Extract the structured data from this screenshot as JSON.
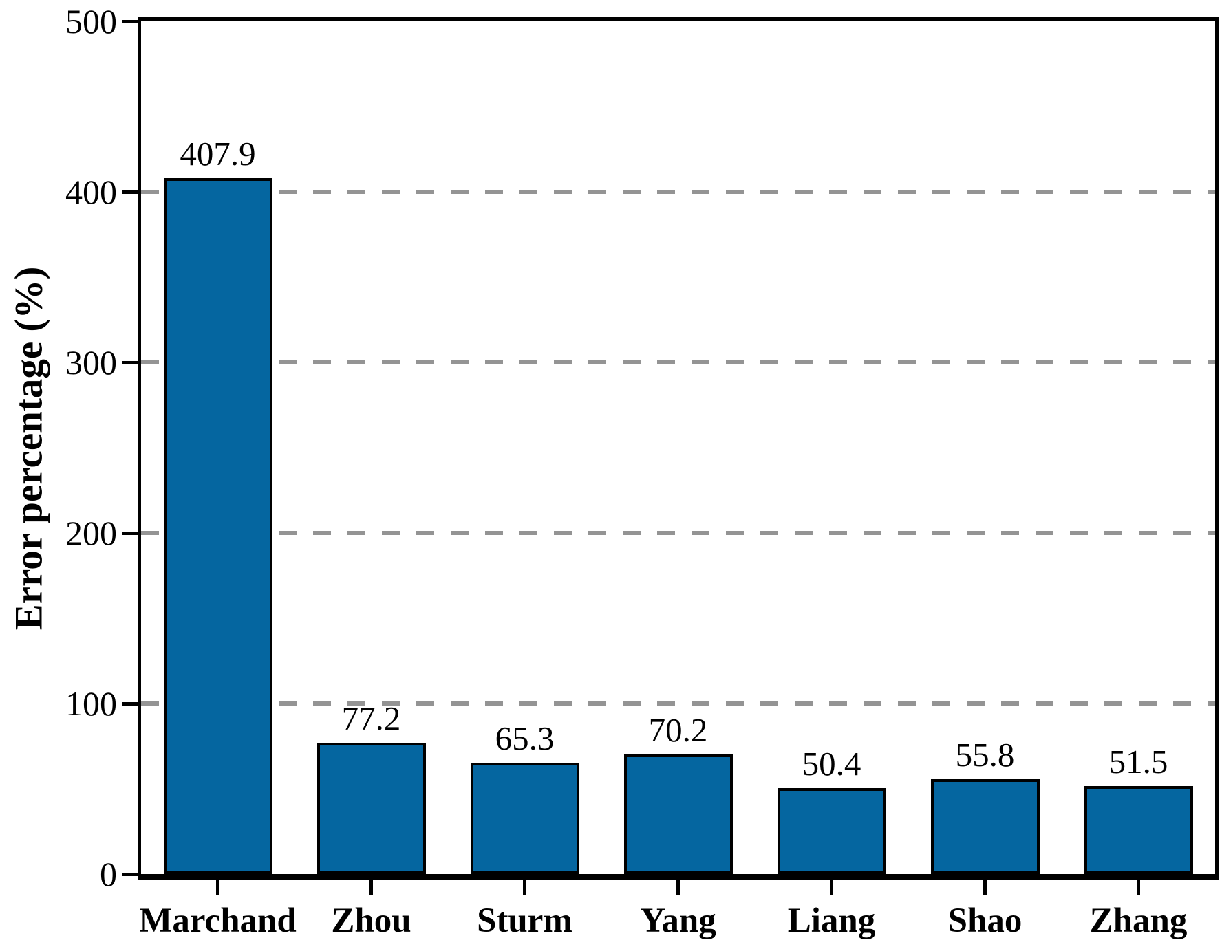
{
  "chart_data": {
    "type": "bar",
    "title": "",
    "xlabel": "",
    "ylabel": "Error percentage (%)",
    "categories": [
      "Marchand",
      "Zhou",
      "Sturm",
      "Yang",
      "Liang",
      "Shao",
      "Zhang"
    ],
    "values": [
      407.9,
      77.2,
      65.3,
      70.2,
      50.4,
      55.8,
      51.5
    ],
    "value_labels": [
      "407.9",
      "77.2",
      "65.3",
      "70.2",
      "50.4",
      "55.8",
      "51.5"
    ],
    "ylim": [
      0,
      500
    ],
    "yticks": [
      0,
      100,
      200,
      300,
      400,
      500
    ],
    "ytick_labels": [
      "0",
      "100",
      "200",
      "300",
      "400",
      "500"
    ],
    "grid": "horizontal dashed gridlines at 100, 200, 300, 400",
    "legend_position": "none",
    "colors": {
      "bar_fill": "#0566A0",
      "bar_edge": "#000000",
      "grid_line": "#949494",
      "axis": "#000000",
      "background": "#FFFFFF",
      "text": "#000000"
    }
  }
}
